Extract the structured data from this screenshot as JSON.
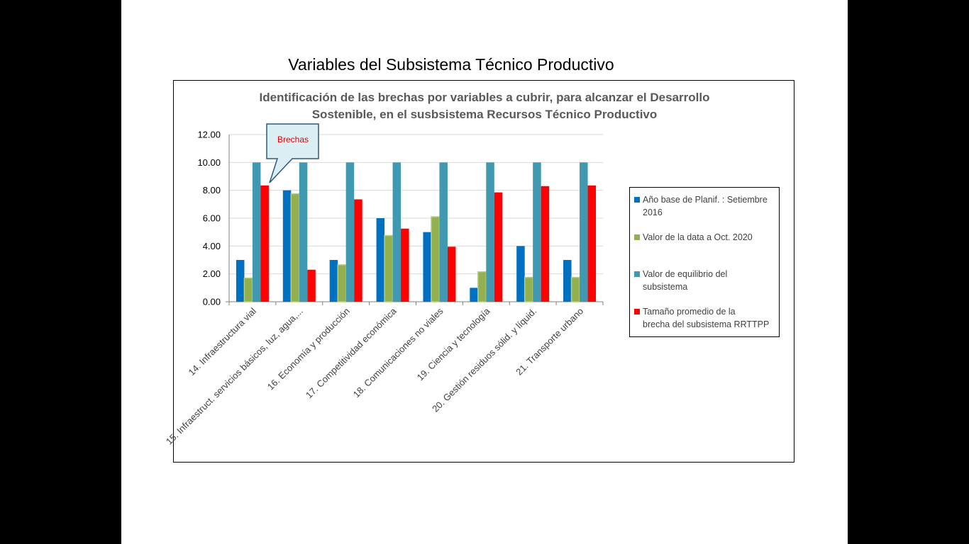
{
  "slide": {
    "title": "Variables del Subsistema Técnico Productivo"
  },
  "callout": {
    "label": "Brechas"
  },
  "chart_data": {
    "type": "bar",
    "title": "Identificación de las brechas por variables a cubrir, para alcanzar el Desarrollo Sostenible, en el susbsistema Recursos Técnico Productivo",
    "title_lines": [
      "Identificación de las brechas por variables a cubrir, para alcanzar el Desarrollo",
      "Sostenible, en el susbsistema Recursos Técnico Productivo"
    ],
    "categories": [
      "14. Infraestructura vial",
      "15. Infraestruct. servicios básicos, luz, agua,...",
      "16. Economía y producción",
      "17. Competitividad económica",
      "18. Comunicaciones no viales",
      "19. Ciencia y tecnología",
      "20. Gestión residuos sólid. y líquid.",
      "21. Transporte urbano"
    ],
    "series": [
      {
        "name": "Año base de Planif. : Setiembre 2016",
        "legend_lines": [
          "Año base de Planif. : Setiembre",
          "2016"
        ],
        "color": "#0070c0",
        "values": [
          3.0,
          8.0,
          3.0,
          6.0,
          5.0,
          1.0,
          4.0,
          3.0
        ]
      },
      {
        "name": "Valor de la data a Oct. 2020",
        "legend_lines": [
          "Valor de la data a Oct.  2020"
        ],
        "color": "#92b050",
        "values": [
          1.7,
          7.75,
          2.65,
          4.75,
          6.1,
          2.15,
          1.75,
          1.75
        ]
      },
      {
        "name": "Valor de equilibrio del subsistema",
        "legend_lines": [
          "Valor de equilibrio del",
          "subsistema"
        ],
        "color": "#4099b0",
        "values": [
          10.0,
          10.0,
          10.0,
          10.0,
          10.0,
          10.0,
          10.0,
          10.0
        ]
      },
      {
        "name": "Tamaño promedio de la brecha del subsistema RRTTPP",
        "legend_lines": [
          "Tamaño promedio de la",
          "brecha del subsistema RRTTPP"
        ],
        "color": "#ff0000",
        "values": [
          8.35,
          2.3,
          7.35,
          5.25,
          3.95,
          7.85,
          8.3,
          8.35
        ]
      }
    ],
    "yticks": [
      "0.00",
      "2.00",
      "4.00",
      "6.00",
      "8.00",
      "10.00",
      "12.00"
    ],
    "ylim": [
      0,
      12
    ],
    "xlabel": "",
    "ylabel": "",
    "grid": true,
    "legend_position": "right"
  }
}
